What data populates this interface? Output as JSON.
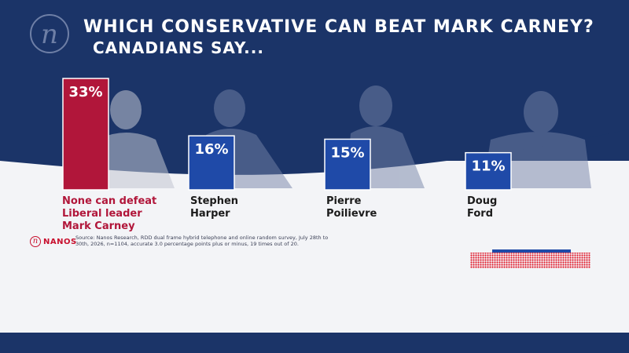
{
  "header": {
    "title": "WHICH CONSERVATIVE CAN BEAT MARK CARNEY?",
    "subtitle": "CANADIANS SAY..."
  },
  "chart_data": {
    "type": "bar",
    "categories": [
      "None can defeat\nLiberal leader\nMark Carney",
      "Stephen\nHarper",
      "Pierre\nPoilievre",
      "Doug\nFord"
    ],
    "values": [
      33,
      16,
      15,
      11
    ],
    "value_labels": [
      "33%",
      "16%",
      "15%",
      "11%"
    ],
    "unit": "%",
    "colors": [
      "#b1163a",
      "#1f4aa8",
      "#1f4aa8",
      "#1f4aa8"
    ],
    "label_colors": [
      "#b1163a",
      "#1b1b1b",
      "#1b1b1b",
      "#1b1b1b"
    ],
    "xlabel": "",
    "ylabel": "",
    "ylim": [
      0,
      33
    ],
    "grid": false,
    "legend": "none"
  },
  "source": {
    "text": "Source: Nanos Research, RDD dual frame hybrid telephone and online random survey, July 28th to 30th, 2026, n=1104, accurate 3.0 percentage points plus or minus, 19 times out of 20."
  },
  "brand": {
    "logo_letter": "n",
    "name": "NANOS",
    "accent": "#c8102e",
    "navy": "#1b3468"
  }
}
